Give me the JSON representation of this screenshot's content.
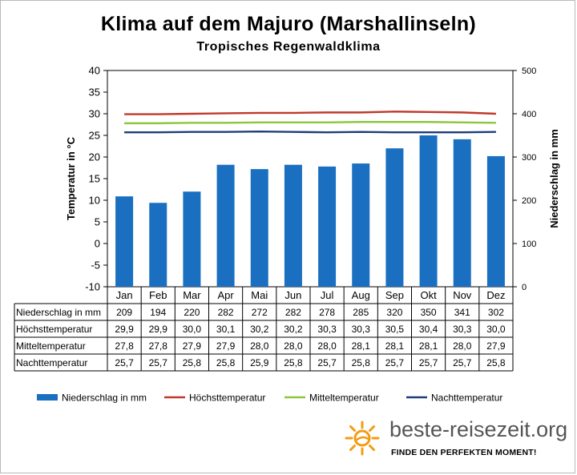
{
  "chart_data": {
    "type": "bar",
    "title": "Klima auf dem Majuro (Marshallinseln)",
    "subtitle": "Tropisches Regenwaldklima",
    "categories": [
      "Jan",
      "Feb",
      "Mar",
      "Apr",
      "Mai",
      "Jun",
      "Jul",
      "Aug",
      "Sep",
      "Okt",
      "Nov",
      "Dez"
    ],
    "y_left": {
      "label": "Temperatur in °C",
      "range": [
        -10,
        40
      ],
      "ticks": [
        "40",
        "35",
        "30",
        "25",
        "20",
        "15",
        "10",
        "5",
        "0",
        "-5",
        "-10"
      ]
    },
    "y_right": {
      "label": "Niederschlag in mm",
      "range": [
        0,
        500
      ],
      "ticks": [
        "500",
        "400",
        "300",
        "200",
        "100",
        "0"
      ]
    },
    "grid": false,
    "legend_position": "bottom",
    "series": [
      {
        "name": "Niederschlag in mm",
        "kind": "bar",
        "axis": "right",
        "color": "#1a6fc1",
        "values": [
          209,
          194,
          220,
          282,
          272,
          282,
          278,
          285,
          320,
          350,
          341,
          302
        ],
        "labels": [
          "209",
          "194",
          "220",
          "282",
          "272",
          "282",
          "278",
          "285",
          "320",
          "350",
          "341",
          "302"
        ]
      },
      {
        "name": "Höchsttemperatur",
        "kind": "line",
        "axis": "left",
        "color": "#c0392b",
        "values": [
          29.9,
          29.9,
          30.0,
          30.1,
          30.2,
          30.2,
          30.3,
          30.3,
          30.5,
          30.4,
          30.3,
          30.0
        ],
        "labels": [
          "29,9",
          "29,9",
          "30,0",
          "30,1",
          "30,2",
          "30,2",
          "30,3",
          "30,3",
          "30,5",
          "30,4",
          "30,3",
          "30,0"
        ]
      },
      {
        "name": "Mitteltemperatur",
        "kind": "line",
        "axis": "left",
        "color": "#8dc63f",
        "values": [
          27.8,
          27.8,
          27.9,
          27.9,
          28.0,
          28.0,
          28.0,
          28.1,
          28.1,
          28.1,
          28.0,
          27.9
        ],
        "labels": [
          "27,8",
          "27,8",
          "27,9",
          "27,9",
          "28,0",
          "28,0",
          "28,0",
          "28,1",
          "28,1",
          "28,1",
          "28,0",
          "27,9"
        ]
      },
      {
        "name": "Nachttemperatur",
        "kind": "line",
        "axis": "left",
        "color": "#1f3d7a",
        "values": [
          25.7,
          25.7,
          25.8,
          25.8,
          25.9,
          25.8,
          25.7,
          25.8,
          25.7,
          25.7,
          25.7,
          25.8
        ],
        "labels": [
          "25,7",
          "25,7",
          "25,8",
          "25,8",
          "25,9",
          "25,8",
          "25,7",
          "25,8",
          "25,7",
          "25,7",
          "25,7",
          "25,8"
        ]
      }
    ]
  },
  "branding": {
    "name": "beste-reisezeit.org",
    "tagline": "FINDE DEN PERFEKTEN MOMENT!",
    "logo_icon": "sun-icon",
    "logo_color": "#f39c12"
  }
}
